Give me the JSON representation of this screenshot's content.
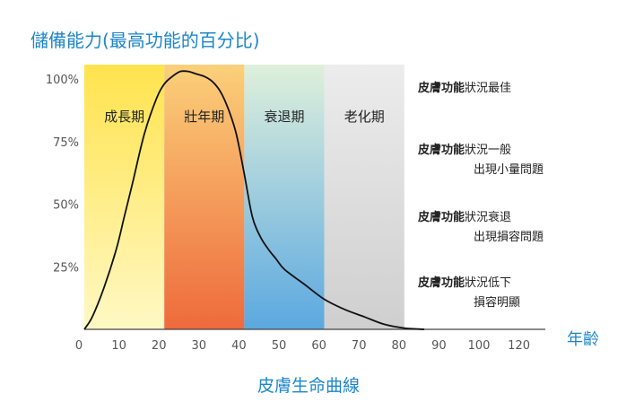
{
  "chart_data": {
    "type": "line",
    "title": "儲備能力(最高功能的百分比)",
    "caption": "皮膚生命曲線",
    "xlabel": "年齡",
    "ylabel": "",
    "xlim": [
      0,
      120
    ],
    "ylim": [
      0,
      100
    ],
    "x_ticks": [
      "0",
      "10",
      "20",
      "30",
      "40",
      "50",
      "60",
      "70",
      "80",
      "90",
      "100",
      "120"
    ],
    "y_ticks": [
      "25%",
      "50%",
      "75%",
      "100%"
    ],
    "stages": [
      {
        "label": "成長期",
        "from": 0,
        "to": 20,
        "top": "#ffe34d",
        "bottom": "#fff8c4"
      },
      {
        "label": "壯年期",
        "from": 20,
        "to": 40,
        "top": "#fbd07a",
        "bottom": "#ee6a3c"
      },
      {
        "label": "衰退期",
        "from": 40,
        "to": 60,
        "top": "#dff0dc",
        "bottom": "#5ba8e0"
      },
      {
        "label": "老化期",
        "from": 60,
        "to": 80,
        "top": "#ececec",
        "bottom": "#cfcfcf"
      }
    ],
    "series": [
      {
        "x": [
          0,
          2,
          5,
          8,
          10,
          12,
          15,
          18,
          20,
          22,
          24,
          26,
          28,
          30,
          32,
          34,
          36,
          38,
          40,
          42,
          44,
          46,
          48,
          50,
          55,
          60,
          65,
          70,
          75,
          80,
          85
        ],
        "y": [
          0,
          5,
          17,
          32,
          45,
          58,
          78,
          92,
          98,
          101,
          103,
          103,
          102,
          101,
          99,
          95,
          88,
          78,
          62,
          45,
          37,
          32,
          28,
          24,
          18,
          12,
          8,
          5,
          2,
          0.5,
          0
        ]
      }
    ],
    "notes": [
      {
        "bold": "皮膚功能",
        "line1": "狀況最佳",
        "line2": ""
      },
      {
        "bold": "皮膚功能",
        "line1": "狀況一般",
        "line2": "出現小量問題"
      },
      {
        "bold": "皮膚功能",
        "line1": "狀況衰退",
        "line2": "出現損容問題"
      },
      {
        "bold": "皮膚功能",
        "line1": "狀況低下",
        "line2": "損容明顯"
      }
    ],
    "colors": {
      "title": "#1d86c8",
      "axis_label": "#1d86c8",
      "curve": "#111111",
      "tick": "#555555"
    }
  }
}
